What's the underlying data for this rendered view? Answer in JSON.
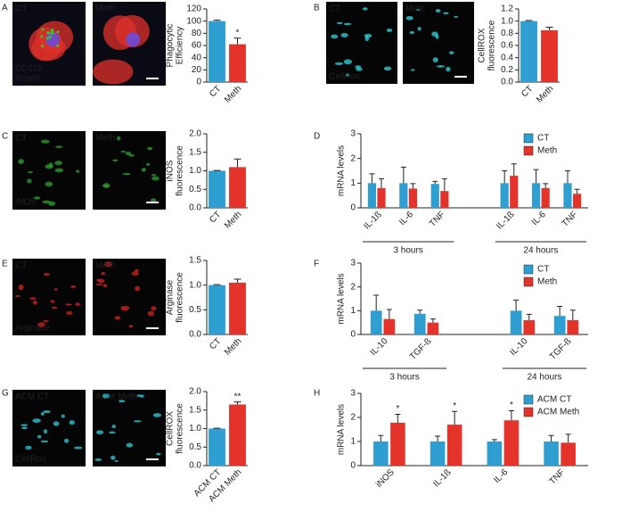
{
  "chart_data": [
    {
      "type": "bar",
      "panel": "A",
      "images": [
        {
          "top": "CT",
          "bottom": [
            "CD11b",
            "Beads"
          ]
        },
        {
          "top": "Meth"
        }
      ],
      "ylabel": [
        "Phagocytic",
        "Efficiency"
      ],
      "categories": [
        "CT",
        "Meth"
      ],
      "values": [
        100,
        62
      ],
      "errors": [
        1.5,
        10
      ],
      "colors": [
        "#2e9fd0",
        "#e4332a"
      ],
      "significance": [
        null,
        "*"
      ],
      "ylim": [
        0,
        120
      ],
      "yticks": [
        0,
        20,
        40,
        60,
        80,
        100,
        120
      ]
    },
    {
      "type": "bar",
      "panel": "B",
      "images": [
        {
          "top": "CT",
          "bottom": [
            "CellRox"
          ]
        },
        {
          "top": "Meth"
        }
      ],
      "ylabel": [
        "CellROX",
        "fluorescence"
      ],
      "categories": [
        "CT",
        "Meth"
      ],
      "values": [
        1.0,
        0.85
      ],
      "errors": [
        0.01,
        0.05
      ],
      "colors": [
        "#2e9fd0",
        "#e4332a"
      ],
      "ylim": [
        0,
        1.2
      ],
      "yticks": [
        {
          "value": 0,
          "label": "0.0"
        },
        0.2,
        0.4,
        0.6,
        0.8,
        {
          "value": 1,
          "label": "1.0"
        },
        1.2
      ]
    },
    {
      "type": "bar",
      "panel": "C",
      "images": [
        {
          "top": "CT",
          "bottom": [
            "iNOS"
          ]
        },
        {
          "top": "Meth"
        }
      ],
      "ylabel": [
        "iNOS",
        "fluorescence"
      ],
      "categories": [
        "CT",
        "Meth"
      ],
      "values": [
        1.0,
        1.1
      ],
      "errors": [
        0.01,
        0.22
      ],
      "colors": [
        "#2e9fd0",
        "#e4332a"
      ],
      "ylim": [
        0,
        2
      ],
      "yticks": [
        {
          "value": 0,
          "label": "0.0"
        },
        0.5,
        {
          "value": 1,
          "label": "1.0"
        },
        1.5,
        {
          "value": 2,
          "label": "2.0"
        }
      ]
    },
    {
      "type": "grouped_bar",
      "panel": "D",
      "ylabel": [
        "mRNA levels"
      ],
      "categories": [
        "IL-1ß",
        "IL-6",
        "TNF",
        "IL-1ß",
        "IL-6",
        "TNF"
      ],
      "groups": [
        "3 hours",
        "3 hours",
        "3 hours",
        "24 hours",
        "24 hours",
        "24 hours"
      ],
      "series": [
        {
          "name": "CT",
          "color": "#2e9fd0",
          "values": [
            1.0,
            1.0,
            0.97,
            1.0,
            1.0,
            1.0
          ],
          "errors": [
            0.38,
            0.65,
            0.1,
            0.5,
            0.55,
            0.5
          ]
        },
        {
          "name": "Meth",
          "color": "#e4332a",
          "values": [
            0.8,
            0.78,
            0.68,
            1.3,
            0.8,
            0.57
          ],
          "errors": [
            0.38,
            0.2,
            0.5,
            0.48,
            0.18,
            0.18
          ]
        }
      ],
      "ylim": [
        0,
        3
      ],
      "yticks": [
        0,
        1,
        2,
        3
      ]
    },
    {
      "type": "bar",
      "panel": "E",
      "images": [
        {
          "top": "CT",
          "bottom": [
            "Arginase"
          ]
        },
        {
          "top": "Meth"
        }
      ],
      "ylabel": [
        "Arginase",
        "fluorescence"
      ],
      "categories": [
        "CT",
        "Meth"
      ],
      "values": [
        1.0,
        1.05
      ],
      "errors": [
        0.01,
        0.07
      ],
      "colors": [
        "#2e9fd0",
        "#e4332a"
      ],
      "ylim": [
        0,
        1.5
      ],
      "yticks": [
        {
          "value": 0,
          "label": "0.0"
        },
        0.5,
        {
          "value": 1,
          "label": "1.0"
        },
        1.5
      ]
    },
    {
      "type": "grouped_bar",
      "panel": "F",
      "ylabel": [
        "mRNA levels"
      ],
      "categories": [
        "IL-10",
        "TGF-ß",
        "IL-10",
        "TGF-ß"
      ],
      "groups": [
        "3 hours",
        "3 hours",
        "24 hours",
        "24 hours"
      ],
      "series": [
        {
          "name": "CT",
          "color": "#2e9fd0",
          "values": [
            1.0,
            0.87,
            1.0,
            0.78
          ],
          "errors": [
            0.65,
            0.15,
            0.45,
            0.4
          ]
        },
        {
          "name": "Meth",
          "color": "#e4332a",
          "values": [
            0.65,
            0.5,
            0.6,
            0.6
          ],
          "errors": [
            0.4,
            0.15,
            0.25,
            0.42
          ]
        }
      ],
      "ylim": [
        0,
        3
      ],
      "yticks": [
        0,
        1,
        2,
        3
      ]
    },
    {
      "type": "bar",
      "panel": "G",
      "images": [
        {
          "top": "ACM CT",
          "bottom": [
            "CellRox"
          ]
        },
        {
          "top": "ACM Meth"
        }
      ],
      "ylabel": [
        "CellROX",
        "fluorescence"
      ],
      "categories": [
        "ACM CT",
        "ACM Meth"
      ],
      "values": [
        1.0,
        1.65
      ],
      "errors": [
        0.01,
        0.07
      ],
      "colors": [
        "#2e9fd0",
        "#e4332a"
      ],
      "significance": [
        null,
        "**"
      ],
      "ylim": [
        0,
        2
      ],
      "yticks": [
        {
          "value": 0,
          "label": "0.0"
        },
        0.5,
        {
          "value": 1,
          "label": "1.0"
        },
        1.5,
        {
          "value": 2,
          "label": "2.0"
        }
      ]
    },
    {
      "type": "grouped_bar",
      "panel": "H",
      "ylabel": [
        "mRNA levels"
      ],
      "categories": [
        "iNOS",
        "IL-1ß",
        "IL-6",
        "TNF"
      ],
      "series": [
        {
          "name": "ACM CT",
          "color": "#2e9fd0",
          "values": [
            1.0,
            1.0,
            1.0,
            1.0
          ],
          "errors": [
            0.25,
            0.22,
            0.08,
            0.25
          ]
        },
        {
          "name": "ACM Meth",
          "color": "#e4332a",
          "values": [
            1.78,
            1.7,
            1.88,
            0.95
          ],
          "errors": [
            0.35,
            0.55,
            0.4,
            0.35
          ],
          "significance": [
            "*",
            "*",
            "*",
            null
          ]
        }
      ],
      "ylim": [
        0,
        3
      ],
      "yticks": [
        0,
        1,
        2,
        3
      ]
    }
  ]
}
